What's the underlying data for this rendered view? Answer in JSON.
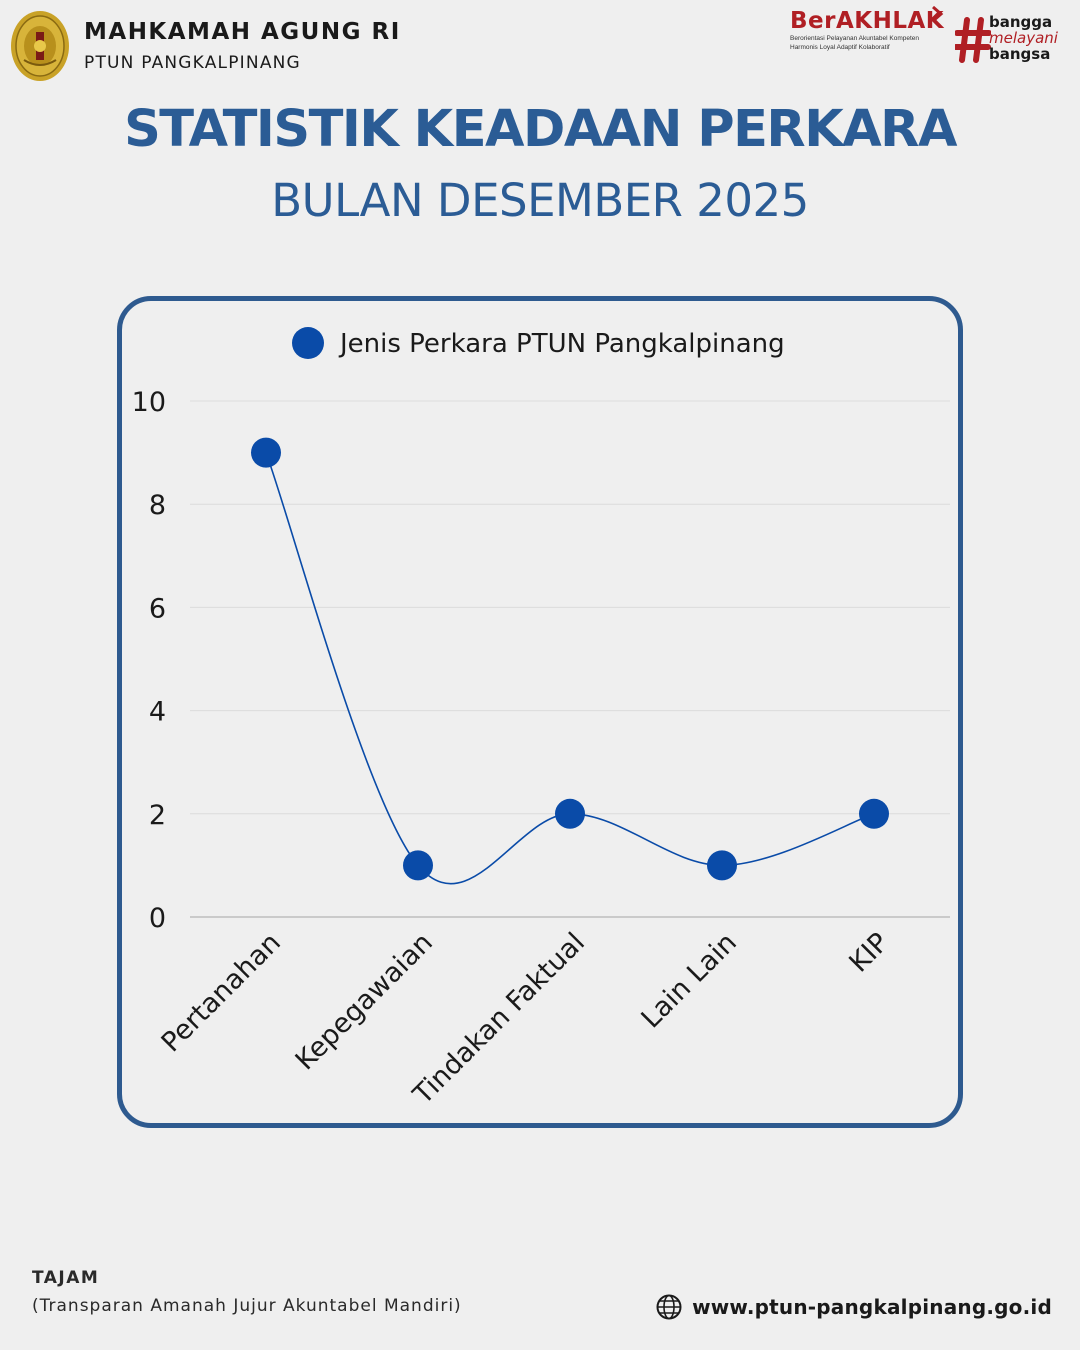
{
  "header": {
    "org_name": "MAHKAMAH AGUNG RI",
    "org_sub": "PTUN PANGKALPINANG",
    "berakhlak_word": "BerAKHLAK",
    "berakhlak_tagline_1": "Berorientasi Pelayanan Akuntabel Kompeten",
    "berakhlak_tagline_2": "Harmonis Loyal Adaptif Kolaboratif",
    "bangga_1": "bangga",
    "bangga_2": "melayani",
    "bangga_3": "bangsa"
  },
  "title": "STATISTIK KEADAAN PERKARA",
  "subtitle": "BULAN DESEMBER 2025",
  "colors": {
    "title": "#2b5c95",
    "frame": "#2e5a8f",
    "series": "#0a4ba8",
    "brand_red": "#b01f24"
  },
  "chart_data": {
    "type": "line",
    "categories": [
      "Pertanahan",
      "Kepegawaian",
      "Tindakan Faktual",
      "Lain Lain",
      "KIP"
    ],
    "series": [
      {
        "name": "Jenis Perkara PTUN Pangkalpinang",
        "values": [
          9,
          1,
          2,
          1,
          2
        ]
      }
    ],
    "ylim": [
      0,
      10
    ],
    "yticks": [
      0,
      2,
      4,
      6,
      8,
      10
    ],
    "grid": true,
    "legend": "top",
    "smooth": true
  },
  "footer": {
    "title": "TAJAM",
    "subtitle": "(Transparan Amanah Jujur Akuntabel Mandiri)",
    "url": "www.ptun-pangkalpinang.go.id"
  }
}
